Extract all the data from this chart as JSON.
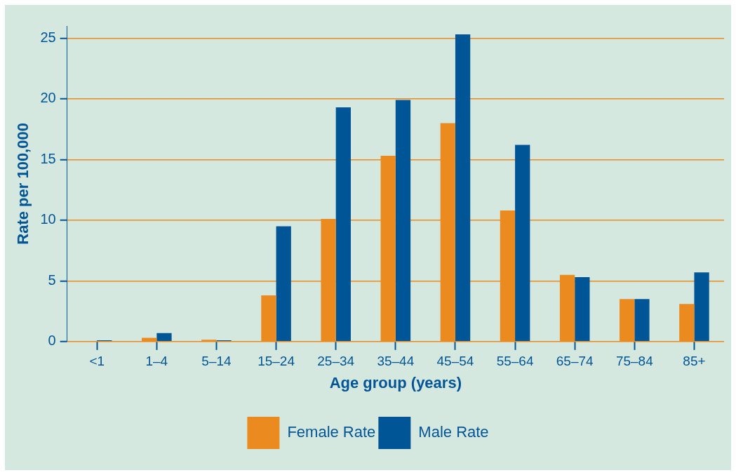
{
  "chart_data": {
    "type": "bar",
    "xlabel": "Age group (years)",
    "ylabel": "Rate per 100,000",
    "categories": [
      "<1",
      "1–4",
      "5–14",
      "15–24",
      "25–34",
      "35–44",
      "45–54",
      "55–64",
      "65–74",
      "75–84",
      "85+"
    ],
    "series": [
      {
        "name": "Female Rate",
        "color": "#eb8a1e",
        "values": [
          0,
          0.3,
          0.15,
          3.8,
          10.1,
          15.3,
          18,
          10.8,
          5.5,
          3.5,
          3.1
        ]
      },
      {
        "name": "Male Rate",
        "color": "#005596",
        "values": [
          0.1,
          0.7,
          0.1,
          9.5,
          19.3,
          19.9,
          25.3,
          16.2,
          5.3,
          3.5,
          5.7
        ]
      }
    ],
    "ylim": [
      0,
      26
    ],
    "yticks": [
      0,
      5,
      10,
      15,
      20,
      25
    ],
    "grid": "y",
    "legend": "bottom"
  }
}
